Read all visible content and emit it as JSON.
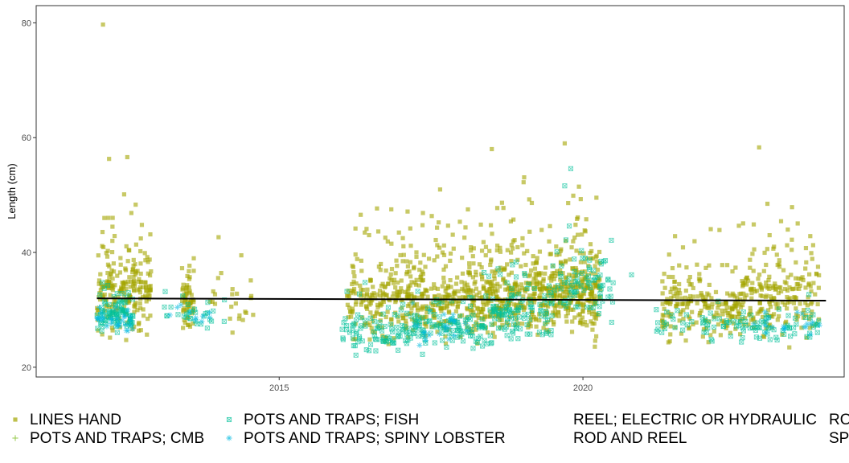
{
  "chart_data": {
    "type": "scatter",
    "title": "",
    "xlabel": "",
    "ylabel": "Length (cm)",
    "x_ticks": [
      "2015",
      "2020"
    ],
    "y_ticks": [
      20,
      40,
      60,
      80
    ],
    "xlim": [
      2011.0,
      2024.3
    ],
    "ylim": [
      18.3,
      83
    ],
    "grid": false,
    "legend_position": "bottom",
    "trend_line": {
      "color": "#000000",
      "points": [
        [
          2012.0,
          32.0
        ],
        [
          2024.0,
          31.6
        ]
      ]
    },
    "series": [
      {
        "name": "LINES HAND",
        "marker": "square",
        "color": "#A3A500",
        "clusters": [
          {
            "x": [
              2012.0,
              2012.9
            ],
            "y": [
              23,
              57
            ],
            "n": 220
          },
          {
            "x": [
              2013.4,
              2013.6
            ],
            "y": [
              24,
              47
            ],
            "n": 60
          },
          {
            "x": [
              2013.8,
              2014.6
            ],
            "y": [
              25,
              48
            ],
            "n": 25
          },
          {
            "x": [
              2016.1,
              2017.0
            ],
            "y": [
              22,
              55
            ],
            "n": 160
          },
          {
            "x": [
              2017.0,
              2018.4
            ],
            "y": [
              21,
              56
            ],
            "n": 320
          },
          {
            "x": [
              2018.4,
              2019.6
            ],
            "y": [
              22,
              58
            ],
            "n": 340
          },
          {
            "x": [
              2019.6,
              2020.3
            ],
            "y": [
              22,
              59
            ],
            "n": 220
          },
          {
            "x": [
              2021.3,
              2022.6
            ],
            "y": [
              22,
              50
            ],
            "n": 200
          },
          {
            "x": [
              2022.6,
              2023.9
            ],
            "y": [
              22,
              58
            ],
            "n": 210
          }
        ],
        "points": [
          [
            2012.1,
            79.7
          ],
          [
            2019.7,
            59.0
          ],
          [
            2022.9,
            58.3
          ],
          [
            2018.5,
            58.0
          ],
          [
            2012.2,
            56.3
          ],
          [
            2012.5,
            56.6
          ]
        ]
      },
      {
        "name": "POTS AND TRAPS; CMB",
        "marker": "plus",
        "color": "#6BB100",
        "clusters": [],
        "points": []
      },
      {
        "name": "POTS AND TRAPS; FISH",
        "marker": "square-cross",
        "color": "#00C19A",
        "clusters": [
          {
            "x": [
              2012.0,
              2012.6
            ],
            "y": [
              25,
              39
            ],
            "n": 90
          },
          {
            "x": [
              2013.1,
              2014.1
            ],
            "y": [
              26,
              35
            ],
            "n": 30
          },
          {
            "x": [
              2016.0,
              2017.2
            ],
            "y": [
              21,
              37
            ],
            "n": 90
          },
          {
            "x": [
              2017.2,
              2018.5
            ],
            "y": [
              21,
              40
            ],
            "n": 120
          },
          {
            "x": [
              2018.5,
              2019.5
            ],
            "y": [
              23,
              44
            ],
            "n": 110
          },
          {
            "x": [
              2019.5,
              2020.5
            ],
            "y": [
              25,
              55
            ],
            "n": 80
          },
          {
            "x": [
              2021.2,
              2022.6
            ],
            "y": [
              24,
              36
            ],
            "n": 45
          },
          {
            "x": [
              2022.6,
              2023.9
            ],
            "y": [
              23,
              35
            ],
            "n": 60
          }
        ],
        "points": [
          [
            2019.8,
            54.6
          ],
          [
            2019.7,
            51.6
          ],
          [
            2020.8,
            36.1
          ]
        ]
      },
      {
        "name": "POTS AND TRAPS; SPINY LOBSTER",
        "marker": "asterisk",
        "color": "#00BAE0",
        "clusters": [
          {
            "x": [
              2012.0,
              2012.6
            ],
            "y": [
              25,
              36
            ],
            "n": 30
          },
          {
            "x": [
              2013.2,
              2013.9
            ],
            "y": [
              27,
              33
            ],
            "n": 10
          },
          {
            "x": [
              2017.1,
              2018.4
            ],
            "y": [
              22,
              36
            ],
            "n": 25
          },
          {
            "x": [
              2022.8,
              2023.9
            ],
            "y": [
              24,
              34
            ],
            "n": 20
          }
        ],
        "points": []
      },
      {
        "name": "REEL; ELECTRIC OR HYDRAULIC",
        "marker": "none",
        "color": "#00A5FF",
        "clusters": [],
        "points": []
      },
      {
        "name": "ROD AND REEL",
        "marker": "none",
        "color": "#B983FF",
        "clusters": [],
        "points": []
      }
    ],
    "legend_clipped": [
      {
        "label": "RO"
      },
      {
        "label": "SP"
      }
    ]
  }
}
